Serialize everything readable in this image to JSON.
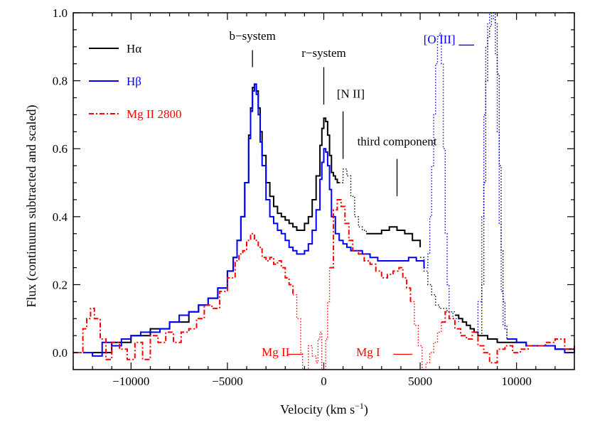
{
  "chart_data": {
    "type": "line",
    "xlabel": "Velocity (km s",
    "xlabel_sup": "−1",
    "xlabel_close": ")",
    "ylabel": "Flux (continuum subtracted and scaled)",
    "xlim": [
      -13000,
      13000
    ],
    "ylim": [
      -0.05,
      1.0
    ],
    "x_ticks": [
      -10000,
      -5000,
      0,
      5000,
      10000
    ],
    "x_tick_labels": [
      "−10000",
      "−5000",
      "0",
      "5000",
      "10000"
    ],
    "y_ticks": [
      0.0,
      0.2,
      0.4,
      0.6,
      0.8,
      1.0
    ],
    "y_tick_labels": [
      "0.0",
      "0.2",
      "0.4",
      "0.6",
      "0.8",
      "1.0"
    ],
    "legend": {
      "placement": "top-left",
      "items": [
        {
          "label": "Hα",
          "color": "#000000",
          "style": "solid"
        },
        {
          "label": "Hβ",
          "color": "#0000ff",
          "style": "solid"
        },
        {
          "label": "Mg II 2800",
          "color": "#ff0000",
          "style": "dash-dot"
        }
      ]
    },
    "series": [
      {
        "name": "Hα",
        "color": "#000000",
        "style": "solid",
        "x": [
          -12000,
          -11000,
          -10000,
          -9000,
          -8000,
          -7000,
          -6500,
          -6000,
          -5500,
          -5000,
          -4700,
          -4500,
          -4300,
          -4100,
          -3900,
          -3800,
          -3700,
          -3600,
          -3500,
          -3400,
          -3300,
          -3200,
          -3000,
          -2800,
          -2600,
          -2400,
          -2200,
          -2000,
          -1800,
          -1600,
          -1400,
          -1200,
          -1000,
          -800,
          -600,
          -400,
          -200,
          -100,
          0,
          100,
          200,
          300,
          400,
          500,
          600,
          700,
          800
        ],
        "values": [
          0.0,
          0.03,
          0.05,
          0.07,
          0.09,
          0.12,
          0.14,
          0.16,
          0.19,
          0.24,
          0.28,
          0.33,
          0.4,
          0.5,
          0.64,
          0.72,
          0.78,
          0.79,
          0.77,
          0.72,
          0.65,
          0.58,
          0.5,
          0.46,
          0.43,
          0.41,
          0.4,
          0.39,
          0.38,
          0.37,
          0.36,
          0.36,
          0.38,
          0.4,
          0.45,
          0.52,
          0.61,
          0.66,
          0.69,
          0.68,
          0.64,
          0.58,
          0.53,
          0.52,
          0.51,
          0.5,
          0.5
        ]
      },
      {
        "name": "Hα",
        "color": "#000000",
        "style": "dotted",
        "x": [
          800,
          1000,
          1200,
          1400,
          1600,
          1800,
          2000,
          2200
        ],
        "values": [
          0.5,
          0.54,
          0.52,
          0.46,
          0.4,
          0.37,
          0.36,
          0.355
        ]
      },
      {
        "name": "Hα",
        "color": "#000000",
        "style": "solid",
        "x": [
          2200,
          2600,
          3000,
          3400,
          3800,
          4200,
          4600,
          5000
        ],
        "values": [
          0.35,
          0.35,
          0.36,
          0.37,
          0.36,
          0.35,
          0.33,
          0.31
        ]
      },
      {
        "name": "Hα",
        "color": "#000000",
        "style": "dotted",
        "x": [
          5000,
          5200,
          5400,
          5600,
          5800,
          6000,
          6200,
          6400,
          6600,
          6800
        ],
        "values": [
          0.28,
          0.24,
          0.2,
          0.17,
          0.14,
          0.13,
          0.13,
          0.12,
          0.12,
          0.12
        ]
      },
      {
        "name": "Hα",
        "color": "#000000",
        "style": "solid",
        "x": [
          6800,
          7000,
          7200,
          7400,
          7600,
          7800,
          8000,
          8500,
          9000,
          9500,
          10000,
          10500,
          11000,
          11500,
          12000,
          12500,
          13000
        ],
        "values": [
          0.11,
          0.1,
          0.09,
          0.08,
          0.07,
          0.06,
          0.05,
          0.04,
          0.03,
          0.03,
          0.03,
          0.02,
          0.02,
          0.02,
          0.01,
          0.01,
          0.01
        ]
      },
      {
        "name": "Hα",
        "color": "#000000",
        "style": "dotted",
        "x": [
          8000,
          8200,
          8300,
          8400,
          8500,
          8600,
          8700,
          8800,
          8900,
          9000,
          9100,
          9200,
          9300,
          9400,
          9500
        ],
        "values": [
          0.05,
          0.2,
          0.5,
          0.8,
          0.93,
          0.96,
          1.0,
          1.0,
          0.97,
          0.82,
          0.55,
          0.3,
          0.15,
          0.07,
          0.04
        ]
      },
      {
        "name": "Hβ",
        "color": "#0000ff",
        "style": "solid",
        "x": [
          -12500,
          -12000,
          -11500,
          -11000,
          -10500,
          -10000,
          -9500,
          -9000,
          -8500,
          -8000,
          -7500,
          -7000,
          -6500,
          -6000,
          -5500,
          -5000,
          -4700,
          -4500,
          -4300,
          -4100,
          -3900,
          -3800,
          -3700,
          -3600,
          -3500,
          -3400,
          -3300,
          -3200,
          -3000,
          -2800,
          -2600,
          -2400,
          -2200,
          -2000,
          -1800,
          -1600,
          -1400,
          -1200,
          -1000,
          -800,
          -600,
          -400,
          -200,
          -100,
          0,
          100,
          200,
          300,
          400,
          600,
          800,
          1000,
          1200,
          1400,
          1600,
          1800,
          2000,
          2400,
          2800,
          3200,
          3600,
          4000,
          4400,
          4800,
          5200
        ],
        "values": [
          0.0,
          -0.01,
          0.03,
          0.02,
          0.04,
          0.05,
          0.06,
          0.06,
          0.07,
          0.09,
          0.11,
          0.12,
          0.14,
          0.16,
          0.19,
          0.24,
          0.28,
          0.33,
          0.4,
          0.5,
          0.63,
          0.71,
          0.77,
          0.79,
          0.76,
          0.7,
          0.62,
          0.55,
          0.45,
          0.4,
          0.38,
          0.36,
          0.35,
          0.33,
          0.31,
          0.3,
          0.29,
          0.29,
          0.3,
          0.32,
          0.36,
          0.42,
          0.51,
          0.56,
          0.6,
          0.59,
          0.55,
          0.48,
          0.4,
          0.35,
          0.33,
          0.32,
          0.31,
          0.3,
          0.3,
          0.3,
          0.29,
          0.28,
          0.27,
          0.27,
          0.27,
          0.27,
          0.28,
          0.27,
          0.25
        ]
      },
      {
        "name": "Hβ",
        "color": "#0000ff",
        "style": "dotted",
        "x": [
          5200,
          5400,
          5500,
          5600,
          5700,
          5800,
          5900,
          6000,
          6100,
          6200,
          6300,
          6400,
          6500,
          6700,
          7000
        ],
        "values": [
          0.25,
          0.29,
          0.4,
          0.55,
          0.7,
          0.85,
          0.93,
          0.94,
          0.85,
          0.6,
          0.35,
          0.2,
          0.12,
          0.1,
          0.09
        ]
      },
      {
        "name": "Hβ",
        "color": "#0000ff",
        "style": "dotted",
        "x": [
          7800,
          8000,
          8200,
          8300,
          8400,
          8500,
          8600,
          8700,
          8800,
          8900,
          9000,
          9100,
          9200,
          9300,
          9500
        ],
        "values": [
          0.06,
          0.15,
          0.4,
          0.7,
          0.9,
          0.97,
          1.0,
          1.0,
          0.98,
          0.88,
          0.65,
          0.38,
          0.18,
          0.08,
          0.04
        ]
      },
      {
        "name": "Hβ",
        "color": "#0000ff",
        "style": "solid",
        "x": [
          9500,
          10000,
          10500,
          11000,
          11500,
          12000,
          12500,
          13000
        ],
        "values": [
          0.04,
          0.03,
          0.02,
          0.02,
          0.02,
          0.01,
          0.0,
          0.01
        ]
      },
      {
        "name": "Mg II 2800",
        "color": "#ff0000",
        "style": "dash-dot",
        "x": [
          -13000,
          -12500,
          -12300,
          -12100,
          -11900,
          -11600,
          -11300,
          -11000,
          -10600,
          -10200,
          -9800,
          -9400,
          -9000,
          -8600,
          -8200,
          -7800,
          -7400,
          -7000,
          -6600,
          -6200,
          -5800,
          -5400,
          -5000,
          -4600,
          -4400,
          -4200,
          -4000,
          -3800,
          -3600,
          -3400,
          -3200,
          -3000,
          -2800,
          -2600,
          -2400,
          -2200,
          -2000,
          -1800,
          -1600
        ],
        "values": [
          0.0,
          0.07,
          0.1,
          0.13,
          0.1,
          0.04,
          -0.02,
          0.03,
          0.01,
          -0.02,
          0.03,
          -0.02,
          0.05,
          0.03,
          0.06,
          0.03,
          0.06,
          0.07,
          0.1,
          0.14,
          0.13,
          0.18,
          0.22,
          0.27,
          0.29,
          0.3,
          0.33,
          0.35,
          0.33,
          0.31,
          0.28,
          0.27,
          0.28,
          0.26,
          0.27,
          0.25,
          0.22,
          0.2,
          0.17
        ]
      },
      {
        "name": "Mg II 2800",
        "color": "#ff0000",
        "style": "dotted",
        "x": [
          -1600,
          -1400,
          -1200,
          -1100,
          -1000,
          -800,
          -600,
          -400,
          -300,
          -200,
          -100,
          0,
          100,
          200,
          300
        ],
        "values": [
          0.17,
          0.1,
          0.0,
          -0.08,
          -0.06,
          0.02,
          -0.01,
          -0.03,
          0.04,
          0.06,
          -0.05,
          -0.06,
          0.04,
          0.15,
          0.25
        ]
      },
      {
        "name": "Mg II 2800",
        "color": "#ff0000",
        "style": "dash-dot",
        "x": [
          300,
          500,
          700,
          900,
          1100,
          1300,
          1500,
          1800,
          2100,
          2400,
          2700,
          3000,
          3300,
          3600,
          3900,
          4100,
          4300,
          4500
        ],
        "values": [
          0.25,
          0.42,
          0.45,
          0.43,
          0.38,
          0.33,
          0.3,
          0.29,
          0.27,
          0.26,
          0.24,
          0.22,
          0.23,
          0.24,
          0.25,
          0.22,
          0.19,
          0.15
        ]
      },
      {
        "name": "Mg II 2800",
        "color": "#ff0000",
        "style": "dotted",
        "x": [
          4500,
          4700,
          4900,
          5100,
          5300,
          5500,
          5700,
          5900,
          6100
        ],
        "values": [
          0.15,
          0.08,
          0.02,
          -0.05,
          -0.03,
          0.0,
          0.03,
          0.06,
          0.09
        ]
      },
      {
        "name": "Mg II 2800",
        "color": "#ff0000",
        "style": "dash-dot",
        "x": [
          6100,
          6300,
          6500,
          6800,
          7100,
          7400,
          7700,
          8000,
          8300,
          8600,
          9000,
          9400,
          9800,
          10200,
          10600,
          11000,
          11500,
          12000,
          12500,
          13000
        ],
        "values": [
          0.09,
          0.12,
          0.1,
          0.07,
          0.05,
          0.04,
          0.06,
          0.02,
          0.0,
          -0.03,
          0.01,
          0.02,
          0.0,
          0.01,
          0.02,
          0.02,
          0.03,
          0.04,
          0.01,
          0.02
        ]
      }
    ],
    "annotations": [
      {
        "text": "b−system",
        "x": -3700,
        "y": 0.92,
        "color": "#000000",
        "line": [
          [
            -3700,
            0.84
          ],
          [
            -3700,
            0.89
          ]
        ]
      },
      {
        "text": "r−system",
        "x": 0,
        "y": 0.87,
        "color": "#000000",
        "line": [
          [
            0,
            0.73
          ],
          [
            0,
            0.84
          ]
        ]
      },
      {
        "text": "[N II]",
        "x": 1400,
        "y": 0.75,
        "color": "#000000",
        "line": [
          [
            1000,
            0.57
          ],
          [
            1000,
            0.71
          ]
        ]
      },
      {
        "text": "third component",
        "x": 3800,
        "y": 0.61,
        "color": "#000000",
        "line": [
          [
            3800,
            0.46
          ],
          [
            3800,
            0.57
          ]
        ]
      },
      {
        "text": "[O III]",
        "x": 6000,
        "y": 0.91,
        "color": "#0000ff",
        "line": [
          [
            7000,
            0.905
          ],
          [
            7800,
            0.905
          ]
        ]
      },
      {
        "text": "Mg II",
        "x": -2500,
        "y": -0.01,
        "color": "#ff0000",
        "line": [
          [
            -1900,
            -0.005
          ],
          [
            -1100,
            -0.005
          ]
        ]
      },
      {
        "text": "Mg I",
        "x": 2300,
        "y": -0.01,
        "color": "#ff0000",
        "line": [
          [
            3600,
            -0.005
          ],
          [
            4600,
            -0.005
          ]
        ]
      }
    ]
  }
}
